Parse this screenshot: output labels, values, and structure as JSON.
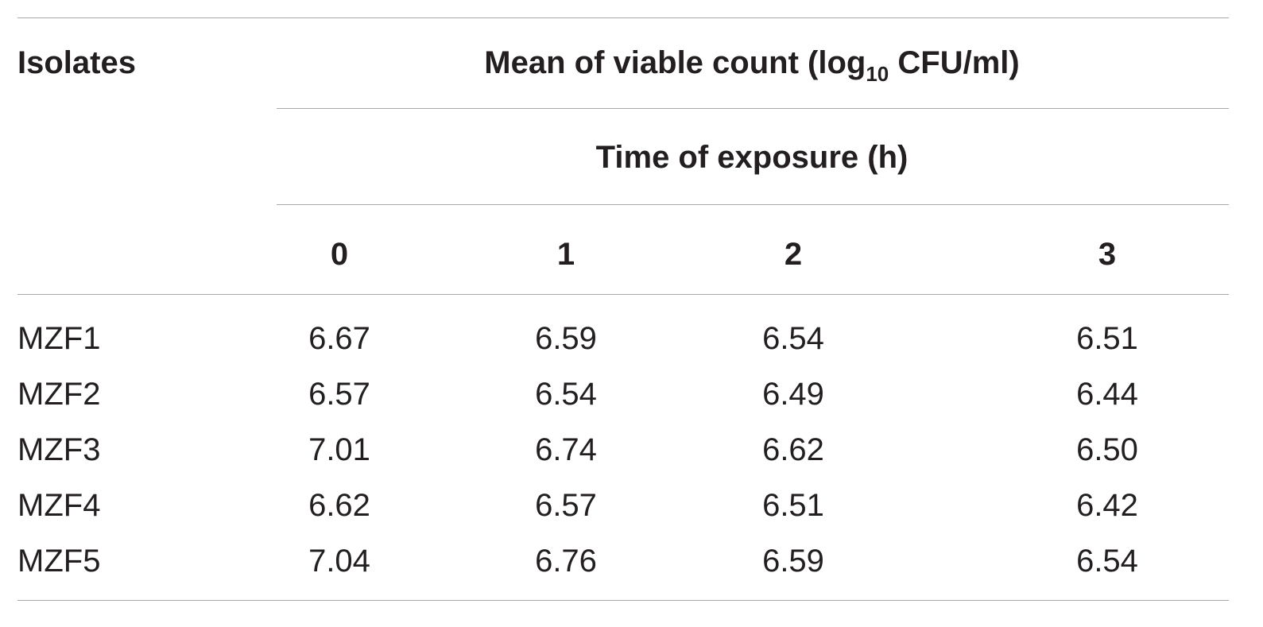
{
  "table": {
    "stub_header": "Isolates",
    "group_header": {
      "prefix": "Mean of viable count (log",
      "subscript": "10",
      "suffix": " CFU/ml)"
    },
    "sub_header": "Time of exposure (h)",
    "columns": [
      "0",
      "1",
      "2",
      "3"
    ],
    "rows": [
      {
        "isolate": "MZF1",
        "values": [
          "6.67",
          "6.59",
          "6.54",
          "6.51"
        ]
      },
      {
        "isolate": "MZF2",
        "values": [
          "6.57",
          "6.54",
          "6.49",
          "6.44"
        ]
      },
      {
        "isolate": "MZF3",
        "values": [
          "7.01",
          "6.74",
          "6.62",
          "6.50"
        ]
      },
      {
        "isolate": "MZF4",
        "values": [
          "6.62",
          "6.57",
          "6.51",
          "6.42"
        ]
      },
      {
        "isolate": "MZF5",
        "values": [
          "7.04",
          "6.76",
          "6.59",
          "6.54"
        ]
      }
    ]
  }
}
